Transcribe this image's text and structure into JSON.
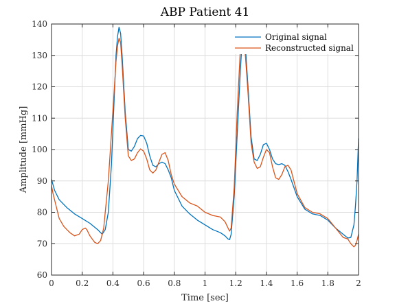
{
  "chart_data": {
    "type": "line",
    "title": "ABP Patient 41",
    "xlabel": "Time [sec]",
    "ylabel": "Amplitude [mmHg]",
    "xlim": [
      0,
      2
    ],
    "ylim": [
      60,
      140
    ],
    "x_ticks": [
      0,
      0.2,
      0.4,
      0.6,
      0.8,
      1,
      1.2,
      1.4,
      1.6,
      1.8,
      2
    ],
    "x_tick_labels": [
      "0",
      "0.2",
      "0.4",
      "0.6",
      "0.8",
      "1",
      "1.2",
      "1.4",
      "1.6",
      "1.8",
      "2"
    ],
    "y_ticks": [
      60,
      70,
      80,
      90,
      100,
      110,
      120,
      130,
      140
    ],
    "y_tick_labels": [
      "60",
      "70",
      "80",
      "90",
      "100",
      "110",
      "120",
      "130",
      "140"
    ],
    "grid": true,
    "legend_position": "top-right",
    "series": [
      {
        "name": "Original signal",
        "color": "#0072BD",
        "x": [
          0,
          0.02,
          0.05,
          0.1,
          0.15,
          0.2,
          0.25,
          0.3,
          0.33,
          0.35,
          0.37,
          0.39,
          0.41,
          0.42,
          0.43,
          0.44,
          0.45,
          0.46,
          0.48,
          0.5,
          0.52,
          0.54,
          0.56,
          0.58,
          0.6,
          0.62,
          0.64,
          0.66,
          0.68,
          0.7,
          0.72,
          0.74,
          0.76,
          0.78,
          0.8,
          0.85,
          0.9,
          0.95,
          1.0,
          1.05,
          1.1,
          1.13,
          1.15,
          1.16,
          1.17,
          1.19,
          1.21,
          1.23,
          1.24,
          1.25,
          1.26,
          1.28,
          1.3,
          1.32,
          1.34,
          1.36,
          1.38,
          1.4,
          1.42,
          1.44,
          1.46,
          1.48,
          1.5,
          1.52,
          1.54,
          1.56,
          1.6,
          1.65,
          1.7,
          1.75,
          1.8,
          1.85,
          1.9,
          1.93,
          1.95,
          1.97,
          1.98,
          1.99,
          2.0
        ],
        "y": [
          90.5,
          87,
          84,
          81.5,
          79.5,
          78,
          76.5,
          74.5,
          73,
          74.5,
          80,
          95,
          118,
          130,
          136,
          139,
          137,
          130,
          112,
          100,
          99.5,
          101,
          103.5,
          104.5,
          104.3,
          102,
          98,
          95,
          94.5,
          95.5,
          96,
          95.5,
          93.5,
          91,
          87,
          82,
          79.5,
          77.5,
          76,
          74.5,
          73.5,
          72.5,
          71.5,
          71.3,
          73,
          85,
          105,
          125,
          133,
          137,
          135,
          120,
          104,
          97,
          96.5,
          98.5,
          101.5,
          102,
          100,
          97,
          95.5,
          95.2,
          95.5,
          95,
          93,
          90.5,
          85,
          81,
          79.5,
          79,
          77.5,
          75,
          73,
          71.8,
          72,
          76,
          82,
          90,
          103.5
        ]
      },
      {
        "name": "Reconstructed signal",
        "color": "#D95319",
        "x": [
          0,
          0.01,
          0.03,
          0.05,
          0.08,
          0.12,
          0.15,
          0.18,
          0.2,
          0.22,
          0.23,
          0.25,
          0.28,
          0.3,
          0.32,
          0.34,
          0.35,
          0.37,
          0.39,
          0.41,
          0.42,
          0.43,
          0.44,
          0.45,
          0.46,
          0.48,
          0.5,
          0.52,
          0.54,
          0.56,
          0.58,
          0.6,
          0.62,
          0.64,
          0.66,
          0.68,
          0.7,
          0.72,
          0.74,
          0.76,
          0.78,
          0.8,
          0.85,
          0.9,
          0.95,
          1.0,
          1.05,
          1.1,
          1.13,
          1.15,
          1.16,
          1.17,
          1.19,
          1.21,
          1.23,
          1.24,
          1.25,
          1.26,
          1.28,
          1.3,
          1.32,
          1.34,
          1.36,
          1.38,
          1.4,
          1.42,
          1.44,
          1.46,
          1.48,
          1.5,
          1.52,
          1.54,
          1.56,
          1.6,
          1.65,
          1.7,
          1.75,
          1.8,
          1.85,
          1.9,
          1.93,
          1.95,
          1.97,
          1.98,
          1.99,
          2.0
        ],
        "y": [
          88.5,
          86,
          82,
          78,
          75.5,
          73.5,
          72.5,
          73,
          74.5,
          75,
          74.5,
          72.5,
          70.5,
          70,
          71,
          75,
          80,
          90,
          105,
          120,
          128,
          133,
          135.5,
          134,
          127,
          110,
          98,
          96.5,
          97,
          99,
          100.2,
          99.5,
          97,
          93.5,
          92.5,
          93.5,
          96,
          98.5,
          99,
          96.5,
          92,
          89,
          85,
          83,
          82,
          80,
          79,
          78.5,
          77,
          75,
          74,
          75,
          88,
          112,
          132,
          136.5,
          136,
          132,
          118,
          102,
          96,
          94,
          94.5,
          97.5,
          100,
          99,
          94.5,
          91,
          90.5,
          92,
          94.5,
          95,
          93.5,
          86,
          81.5,
          80,
          79.5,
          78,
          75,
          72,
          71.5,
          70,
          69,
          69.5,
          71,
          73
        ]
      }
    ]
  }
}
